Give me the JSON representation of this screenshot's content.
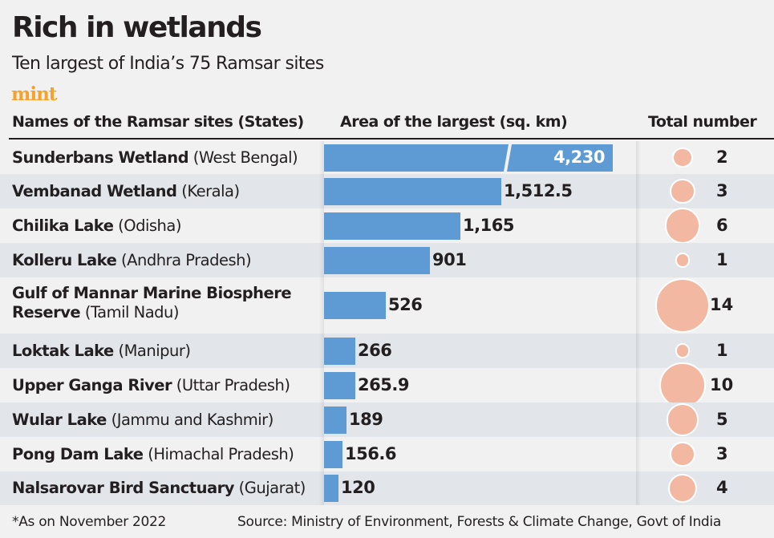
{
  "title": "Rich in wetlands",
  "subtitle": "Ten largest of India’s 75 Ramsar sites",
  "logo": "mint",
  "headers": {
    "names": "Names of the Ramsar sites (States)",
    "area": "Area of the largest (sq. km)",
    "total": "Total number"
  },
  "footer": {
    "note": "*As on November 2022",
    "source": "Source: Ministry of Environment, Forests & Climate Change, Govt of India"
  },
  "colors": {
    "bar": "#5e9ad3",
    "bubble": "#f2b8a2",
    "logo": "#f7a12a"
  },
  "chart_data": {
    "type": "bar",
    "title": "Rich in wetlands",
    "xlabel": "Area of the largest (sq. km)",
    "broken_axis_value": 4230,
    "rows": [
      {
        "name": "Sunderbans Wetland",
        "state": "(West Bengal)",
        "area": 4230,
        "area_label": "4,230",
        "total": 2,
        "total_label": "2"
      },
      {
        "name": "Vembanad Wetland",
        "state": "(Kerala)",
        "area": 1512.5,
        "area_label": "1,512.5",
        "total": 3,
        "total_label": "3"
      },
      {
        "name": "Chilika Lake",
        "state": "(Odisha)",
        "area": 1165,
        "area_label": "1,165",
        "total": 6,
        "total_label": "6"
      },
      {
        "name": "Kolleru Lake",
        "state": "(Andhra Pradesh)",
        "area": 901,
        "area_label": "901",
        "total": 1,
        "total_label": "1"
      },
      {
        "name": "Gulf of Mannar Marine Biosphere Reserve",
        "state": "(Tamil Nadu)",
        "area": 526,
        "area_label": "526",
        "total": 14,
        "total_label": "14"
      },
      {
        "name": "Loktak Lake",
        "state": "(Manipur)",
        "area": 266,
        "area_label": "266",
        "total": 1,
        "total_label": "1"
      },
      {
        "name": "Upper Ganga River",
        "state": "(Uttar Pradesh)",
        "area": 265.9,
        "area_label": "265.9",
        "total": 10,
        "total_label": "10"
      },
      {
        "name": "Wular Lake",
        "state": "(Jammu and Kashmir)",
        "area": 189,
        "area_label": "189",
        "total": 5,
        "total_label": "5"
      },
      {
        "name": "Pong Dam Lake",
        "state": "(Himachal Pradesh)",
        "area": 156.6,
        "area_label": "156.6",
        "total": 3,
        "total_label": "3"
      },
      {
        "name": "Nalsarovar Bird Sanctuary",
        "state": "(Gujarat)",
        "area": 120,
        "area_label": "120",
        "total": 4,
        "total_label": "4"
      }
    ]
  }
}
